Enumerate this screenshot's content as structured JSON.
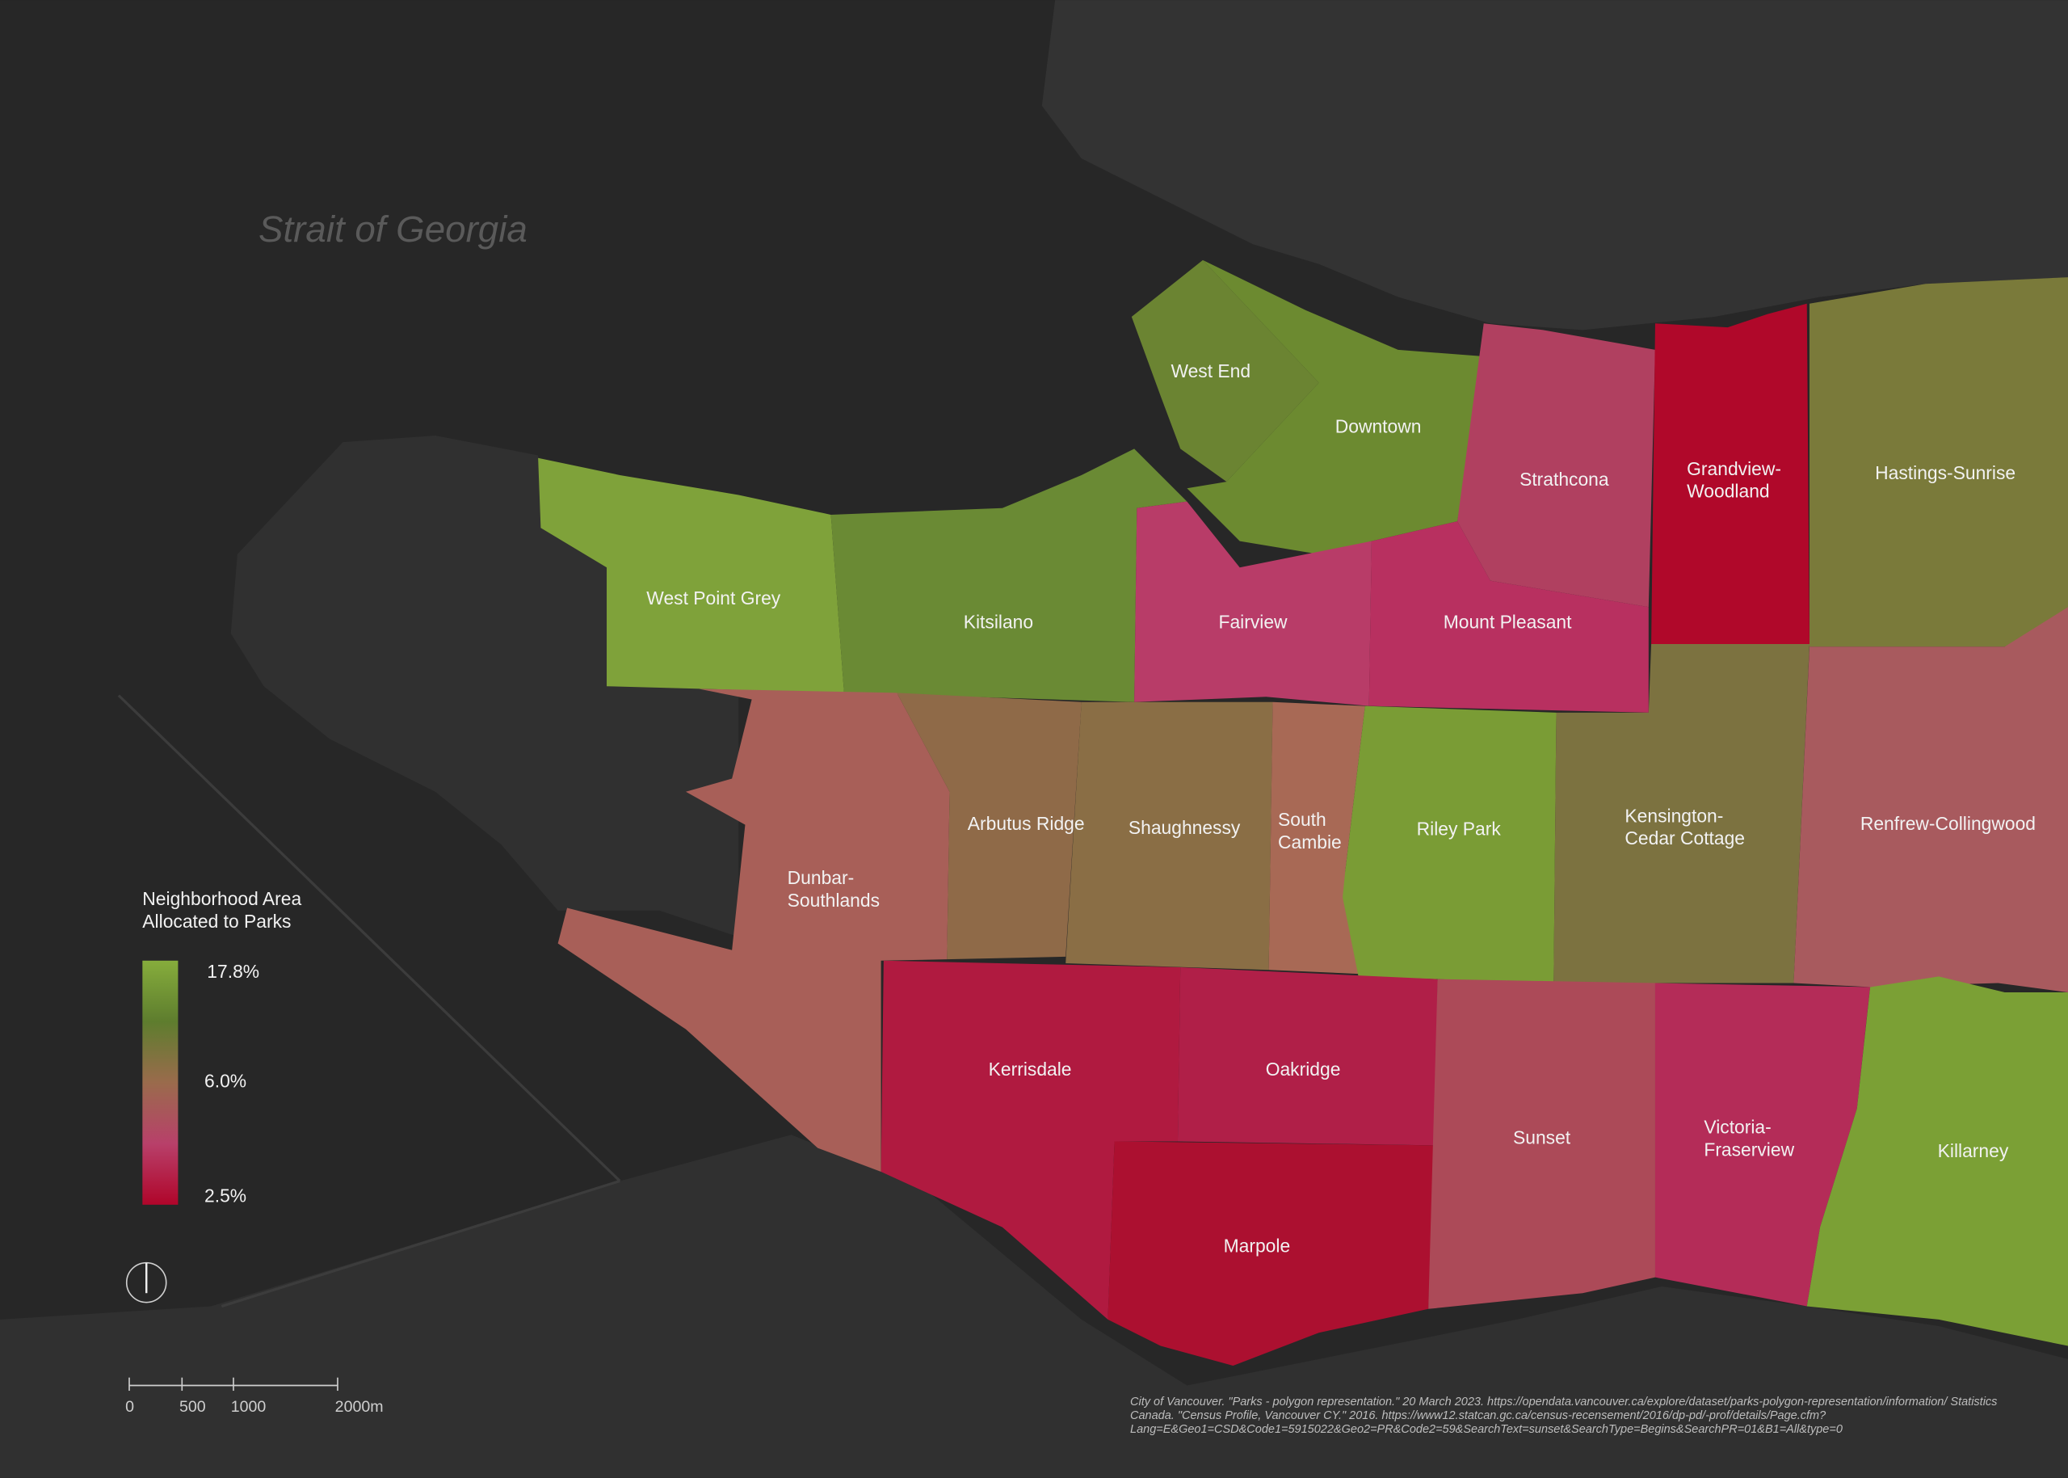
{
  "map": {
    "water_label": "Strait of Georgia",
    "neighborhoods": [
      {
        "label_lines": [
          "West Point Grey"
        ],
        "color": "#7fa23a"
      },
      {
        "label_lines": [
          "Kitsilano"
        ],
        "color": "#6a8a34"
      },
      {
        "label_lines": [
          "West End"
        ],
        "color": "#6b8432"
      },
      {
        "label_lines": [
          "Downtown"
        ],
        "color": "#6c8a30"
      },
      {
        "label_lines": [
          "Strathcona"
        ],
        "color": "#b04060"
      },
      {
        "label_lines": [
          "Grandview-",
          "Woodland"
        ],
        "color": "#b0082a"
      },
      {
        "label_lines": [
          "Hastings-Sunrise"
        ],
        "color": "#7a7a3a"
      },
      {
        "label_lines": [
          "Fairview"
        ],
        "color": "#b83c68"
      },
      {
        "label_lines": [
          "Mount Pleasant"
        ],
        "color": "#b83060"
      },
      {
        "label_lines": [
          "Dunbar-",
          "Southlands"
        ],
        "color": "#a85f58"
      },
      {
        "label_lines": [
          "Arbutus Ridge"
        ],
        "color": "#8f6a48"
      },
      {
        "label_lines": [
          "Shaughnessy"
        ],
        "color": "#8a6e45"
      },
      {
        "label_lines": [
          "South",
          "Cambie"
        ],
        "color": "#a86955"
      },
      {
        "label_lines": [
          "Riley Park"
        ],
        "color": "#7a9c35"
      },
      {
        "label_lines": [
          "Kensington-",
          "Cedar Cottage"
        ],
        "color": "#7c7240"
      },
      {
        "label_lines": [
          "Renfrew-Collingwood"
        ],
        "color": "#a85a5e"
      },
      {
        "label_lines": [
          "Kerrisdale"
        ],
        "color": "#b01a40"
      },
      {
        "label_lines": [
          "Oakridge"
        ],
        "color": "#b01f48"
      },
      {
        "label_lines": [
          "Marpole"
        ],
        "color": "#ac1030"
      },
      {
        "label_lines": [
          "Sunset"
        ],
        "color": "#ac4a58"
      },
      {
        "label_lines": [
          "Victoria-",
          "Fraserview"
        ],
        "color": "#b42c58"
      },
      {
        "label_lines": [
          "Killarney"
        ],
        "color": "#7ba035"
      }
    ],
    "legend": {
      "title_lines": [
        "Neighborhood Area",
        "Allocated to Parks"
      ],
      "ticks": [
        "17.8%",
        "6.0%",
        "2.5%"
      ],
      "gradient": [
        "#86ad3c",
        "#5e7d2e",
        "#9a6b4c",
        "#b8406a",
        "#b0052a"
      ]
    },
    "scale_bar": {
      "labels": [
        "0",
        "500",
        "1000",
        "2000m"
      ]
    },
    "sources": [
      "City of Vancouver. \"Parks - polygon representation.\" 20 March 2023. https://opendata.vancouver.ca/explore/dataset/parks-polygon-representation/information/",
      "Statistics Canada. \"Census Profile, Vancouver CY.\" 2016. https://www12.statcan.gc.ca/census-recensement/2016/dp-pd/-prof/details/Page.cfm?Lang=E&Geo1=CSD&Code1=5915022&Geo2=PR&Code2=59&SearchText=sunset&SearchType=Begins&SearchPR=01&B1=All&type=0"
    ]
  }
}
